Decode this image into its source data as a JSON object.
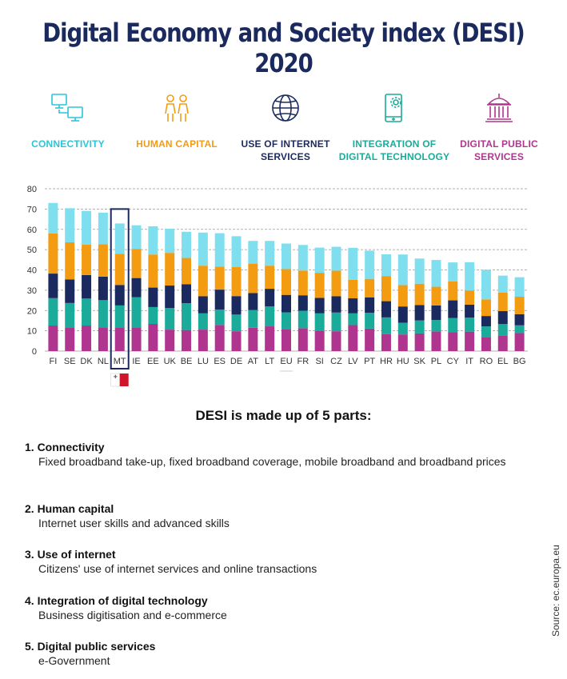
{
  "title": "Digital Economy and Society index (DESI) 2020",
  "legend": [
    {
      "label_line1": "CONNECTIVITY",
      "label_line2": "",
      "color": "#2ac6d8",
      "icon": "computers-icon"
    },
    {
      "label_line1": "HUMAN CAPITAL",
      "label_line2": "",
      "color": "#f39c12",
      "icon": "people-icon"
    },
    {
      "label_line1": "USE OF INTERNET",
      "label_line2": "SERVICES",
      "color": "#1b2a5e",
      "icon": "globe-icon"
    },
    {
      "label_line1": "INTEGRATION OF",
      "label_line2": "DIGITAL TECHNOLOGY",
      "color": "#1aab9a",
      "icon": "smartphone-gear-icon"
    },
    {
      "label_line1": "DIGITAL PUBLIC",
      "label_line2": "SERVICES",
      "color": "#b0358f",
      "icon": "government-building-icon"
    }
  ],
  "chart_data": {
    "type": "bar",
    "stacked": true,
    "categories": [
      "FI",
      "SE",
      "DK",
      "NL",
      "MT",
      "IE",
      "EE",
      "UK",
      "BE",
      "LU",
      "ES",
      "DE",
      "AT",
      "LT",
      "EU",
      "FR",
      "SI",
      "CZ",
      "LV",
      "PT",
      "HR",
      "HU",
      "SK",
      "PL",
      "CY",
      "IT",
      "RO",
      "EL",
      "BG"
    ],
    "highlighted_category": "MT",
    "ylim": [
      0,
      80
    ],
    "yticks": [
      0,
      10,
      20,
      30,
      40,
      50,
      60,
      70,
      80
    ],
    "grid": true,
    "series": [
      {
        "name": "Digital public services",
        "color": "#b0358f",
        "values": [
          12.6,
          11.7,
          12.6,
          11.6,
          11.7,
          11.6,
          13.4,
          10.6,
          10.4,
          10.6,
          12.9,
          9.8,
          11.5,
          12.2,
          10.8,
          11.3,
          10.0,
          9.8,
          12.8,
          11.1,
          8.4,
          8.2,
          8.7,
          9.7,
          9.4,
          9.6,
          7.0,
          7.5,
          8.9
        ]
      },
      {
        "name": "Integration of digital technology",
        "color": "#1aab9a",
        "values": [
          13.5,
          12.0,
          13.3,
          13.5,
          10.8,
          15.0,
          8.3,
          10.6,
          13.2,
          8.0,
          7.6,
          8.2,
          8.7,
          9.8,
          8.3,
          8.6,
          8.6,
          9.2,
          5.8,
          7.8,
          8.2,
          5.8,
          6.4,
          5.6,
          6.9,
          6.9,
          5.2,
          5.8,
          3.8
        ]
      },
      {
        "name": "Use of internet services",
        "color": "#1b2a5e",
        "values": [
          12.1,
          11.6,
          11.6,
          11.6,
          10.1,
          9.4,
          9.6,
          11.1,
          9.3,
          8.4,
          9.8,
          9.1,
          8.4,
          8.7,
          8.6,
          7.6,
          7.6,
          8.0,
          7.4,
          7.6,
          8.0,
          8.0,
          7.6,
          7.2,
          8.7,
          6.4,
          5.1,
          6.4,
          5.5
        ]
      },
      {
        "name": "Human capital",
        "color": "#f39c12",
        "values": [
          19.8,
          18.3,
          14.9,
          15.9,
          15.3,
          14.4,
          16.3,
          16.1,
          13.0,
          15.1,
          11.3,
          14.4,
          14.5,
          11.4,
          12.7,
          12.2,
          12.4,
          12.6,
          9.1,
          9.1,
          12.4,
          10.5,
          10.5,
          9.2,
          9.3,
          7.0,
          8.2,
          9.1,
          8.6
        ]
      },
      {
        "name": "Connectivity",
        "color": "#7fdfef",
        "values": [
          15.0,
          16.8,
          16.7,
          15.6,
          15.0,
          11.6,
          13.9,
          11.9,
          12.9,
          16.3,
          16.5,
          15.1,
          11.2,
          12.2,
          12.6,
          12.6,
          12.4,
          11.8,
          15.8,
          13.9,
          10.7,
          15.1,
          12.4,
          13.2,
          9.4,
          13.9,
          14.6,
          8.4,
          9.6
        ]
      }
    ]
  },
  "subheading": "DESI is made up of 5 parts:",
  "parts": [
    {
      "title": "1. Connectivity",
      "desc": "Fixed broadband take-up, fixed broadband coverage, mobile broadband and broadband prices"
    },
    {
      "title": "2. Human capital",
      "desc": "Internet user skills and advanced skills"
    },
    {
      "title": "3. Use of internet",
      "desc": "Citizens' use of internet services and online transactions"
    },
    {
      "title": "4. Integration of digital technology",
      "desc": "Business digitisation and e-commerce"
    },
    {
      "title": "5. Digital public services",
      "desc": "e-Government"
    }
  ],
  "source": "Source: ec.europa.eu"
}
